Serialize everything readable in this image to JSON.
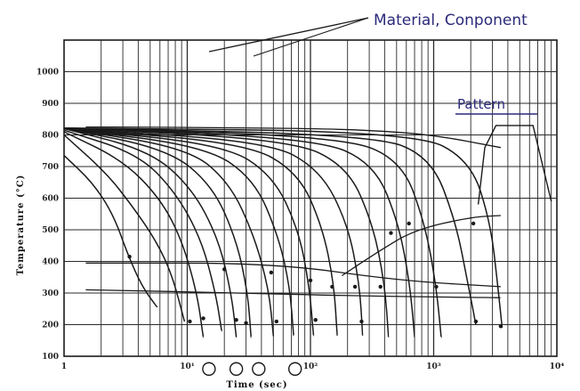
{
  "chart_data": {
    "type": "line",
    "title": "",
    "xlabel": "Time (sec)",
    "ylabel": "Temperature (°C)",
    "x_scale": "log",
    "xlim": [
      1,
      10000
    ],
    "ylim": [
      100,
      1100
    ],
    "x_ticks": [
      1,
      10,
      100,
      1000,
      10000
    ],
    "x_tick_labels": [
      "1",
      "10¹",
      "10²",
      "10³",
      "10⁴"
    ],
    "y_ticks": [
      100,
      200,
      300,
      400,
      500,
      600,
      700,
      800,
      900,
      1000
    ],
    "y_tick_labels": [
      "100",
      "200",
      "300",
      "400",
      "500",
      "600",
      "700",
      "800",
      "900",
      "1000"
    ],
    "grid": true,
    "annotations": {
      "material": "Material, Conponent",
      "pattern": "Pattern"
    },
    "cooling_curves": [
      {
        "x": [
          1,
          1.7,
          2.5,
          3.3,
          4.3,
          5.7
        ],
        "y": [
          735,
          650,
          550,
          420,
          320,
          255
        ]
      },
      {
        "x": [
          1,
          2.2,
          3.5,
          5.5,
          7.5,
          9.5
        ],
        "y": [
          800,
          680,
          580,
          470,
          360,
          210
        ]
      },
      {
        "x": [
          1,
          3,
          6,
          9,
          12,
          13.5
        ],
        "y": [
          810,
          720,
          600,
          470,
          300,
          160
        ]
      },
      {
        "x": [
          1,
          4,
          8,
          13,
          17,
          19
        ],
        "y": [
          815,
          740,
          620,
          470,
          300,
          180
        ]
      },
      {
        "x": [
          1,
          5,
          11,
          18,
          23,
          25
        ],
        "y": [
          820,
          750,
          630,
          470,
          290,
          160
        ]
      },
      {
        "x": [
          1,
          7,
          16,
          25,
          31,
          33
        ],
        "y": [
          820,
          755,
          640,
          470,
          300,
          160
        ]
      },
      {
        "x": [
          1,
          10,
          22,
          35,
          46,
          50
        ],
        "y": [
          820,
          760,
          650,
          480,
          310,
          165
        ]
      },
      {
        "x": [
          1,
          14,
          35,
          55,
          68,
          73
        ],
        "y": [
          820,
          765,
          660,
          480,
          320,
          165
        ]
      },
      {
        "x": [
          1,
          20,
          50,
          80,
          98,
          106
        ],
        "y": [
          820,
          770,
          670,
          500,
          320,
          165
        ]
      },
      {
        "x": [
          1,
          30,
          80,
          125,
          155,
          165
        ],
        "y": [
          820,
          775,
          680,
          510,
          330,
          165
        ]
      },
      {
        "x": [
          1,
          45,
          120,
          200,
          250,
          265
        ],
        "y": [
          820,
          780,
          690,
          520,
          330,
          165
        ]
      },
      {
        "x": [
          1,
          70,
          200,
          320,
          400,
          430
        ],
        "y": [
          822,
          785,
          700,
          520,
          330,
          160
        ]
      },
      {
        "x": [
          1,
          110,
          330,
          520,
          640,
          700
        ],
        "y": [
          822,
          790,
          710,
          520,
          330,
          160
        ]
      },
      {
        "x": [
          1,
          180,
          550,
          850,
          1050,
          1150
        ],
        "y": [
          822,
          795,
          720,
          520,
          320,
          160
        ]
      },
      {
        "x": [
          1,
          330,
          950,
          1500,
          1900,
          2200
        ],
        "y": [
          822,
          800,
          730,
          530,
          330,
          200
        ]
      },
      {
        "x": [
          1,
          700,
          2000,
          2900,
          3300,
          3600
        ],
        "y": [
          822,
          810,
          720,
          520,
          330,
          190
        ]
      }
    ],
    "transformation_lines": [
      {
        "x": [
          1.5,
          3.5,
          20,
          100,
          300,
          1000,
          3500
        ],
        "y": [
          825,
          825,
          823,
          820,
          815,
          800,
          760
        ]
      },
      {
        "x": [
          1.5,
          50,
          500,
          3500
        ],
        "y": [
          395,
          395,
          340,
          320
        ]
      },
      {
        "x": [
          1.5,
          30,
          300,
          3500
        ],
        "y": [
          310,
          300,
          290,
          285
        ]
      },
      {
        "x": [
          180,
          350,
          700,
          2000,
          3500
        ],
        "y": [
          355,
          430,
          500,
          540,
          545
        ]
      }
    ],
    "markers": [
      {
        "x": 3.4,
        "y": 415
      },
      {
        "x": 10.5,
        "y": 210
      },
      {
        "x": 13.5,
        "y": 220
      },
      {
        "x": 20,
        "y": 375
      },
      {
        "x": 25,
        "y": 215
      },
      {
        "x": 30,
        "y": 205
      },
      {
        "x": 48,
        "y": 365
      },
      {
        "x": 53,
        "y": 210
      },
      {
        "x": 100,
        "y": 340
      },
      {
        "x": 110,
        "y": 215
      },
      {
        "x": 150,
        "y": 320
      },
      {
        "x": 230,
        "y": 320
      },
      {
        "x": 260,
        "y": 210
      },
      {
        "x": 370,
        "y": 320
      },
      {
        "x": 450,
        "y": 490
      },
      {
        "x": 630,
        "y": 520
      },
      {
        "x": 1050,
        "y": 320
      },
      {
        "x": 2200,
        "y": 210
      },
      {
        "x": 3500,
        "y": 195
      },
      {
        "x": 2100,
        "y": 520
      }
    ],
    "circle_markers": [
      {
        "x": 15,
        "y": 150
      },
      {
        "x": 25,
        "y": 150
      },
      {
        "x": 38,
        "y": 150
      },
      {
        "x": 75,
        "y": 150
      }
    ],
    "pattern_sketch": {
      "x": [
        2300,
        2600,
        3200,
        5000,
        6400,
        9000
      ],
      "y": [
        580,
        760,
        830,
        830,
        830,
        590
      ]
    }
  },
  "colors": {
    "ink": "#1a1a1a",
    "grid": "#2a2a2a",
    "handwriting": "#2b2a7a"
  }
}
